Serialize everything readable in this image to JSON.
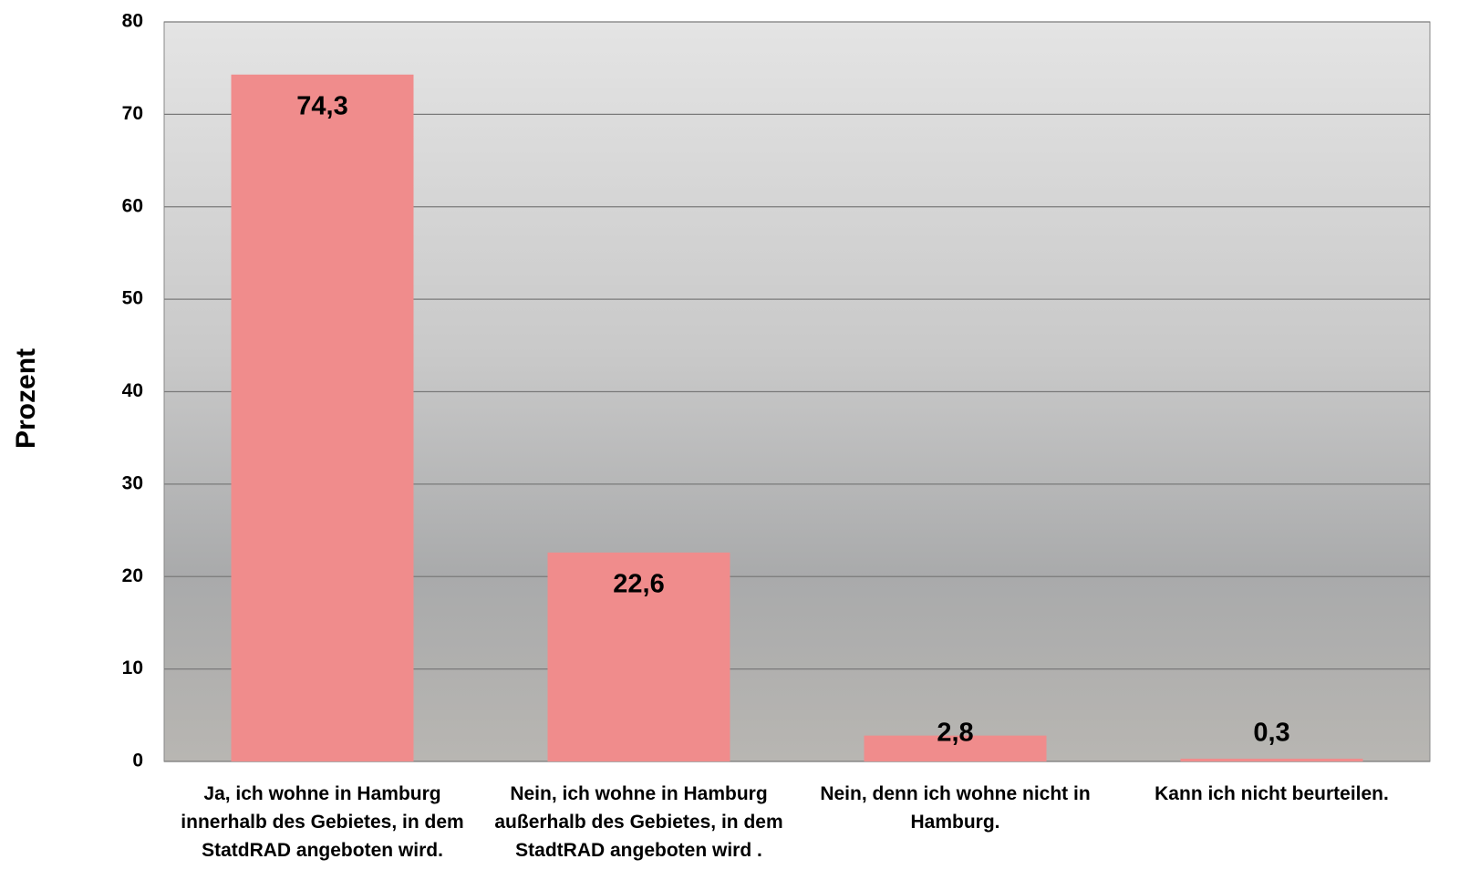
{
  "chart_data": {
    "type": "bar",
    "y_label": "Prozent",
    "categories": [
      "Ja, ich wohne in Hamburg innerhalb des Gebietes, in dem StatdRAD angeboten wird.",
      "Nein, ich wohne in Hamburg außerhalb des Gebietes, in dem StadtRAD angeboten wird .",
      "Nein, denn ich wohne nicht in Hamburg.",
      "Kann ich nicht beurteilen."
    ],
    "values": [
      74.3,
      22.6,
      2.8,
      0.3
    ],
    "value_labels": [
      "74,3",
      "22,6",
      "2,8",
      "0,3"
    ],
    "color": "#f08c8c",
    "ylim": [
      0,
      80
    ],
    "yticks": [
      0,
      10,
      20,
      30,
      40,
      50,
      60,
      70,
      80
    ],
    "grid": true
  }
}
